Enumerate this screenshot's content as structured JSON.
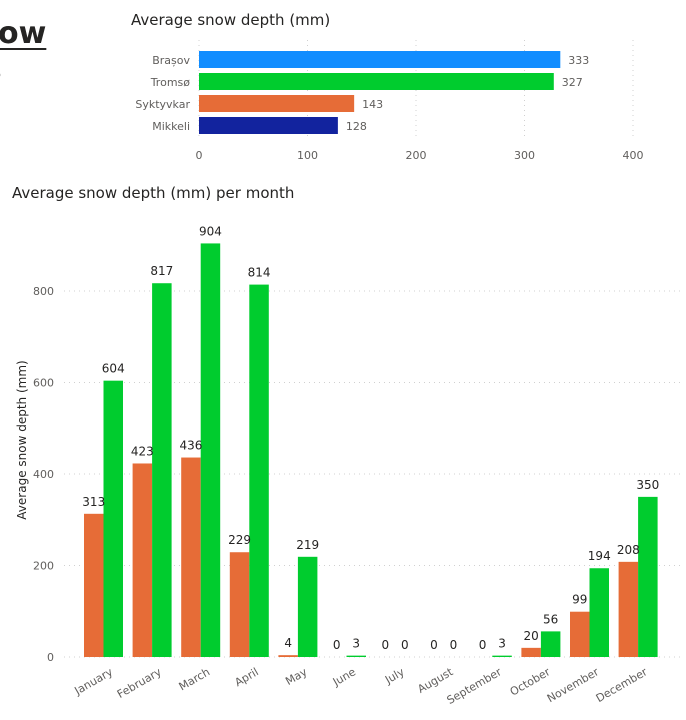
{
  "page": {
    "title_fragment": "ow",
    "title_fragment2": "s"
  },
  "chart_data": [
    {
      "type": "bar",
      "orientation": "horizontal",
      "title": "Average snow depth (mm)",
      "categories": [
        "Brașov",
        "Tromsø",
        "Syktyvkar",
        "Mikkeli"
      ],
      "values": [
        333,
        327,
        143,
        128
      ],
      "colors": [
        "#118DFF",
        "#00CC2E",
        "#E66C37",
        "#12239E"
      ],
      "xlim": [
        0,
        400
      ],
      "xticks": [
        0,
        100,
        200,
        300,
        400
      ],
      "grid": true,
      "legend": "none"
    },
    {
      "type": "bar",
      "orientation": "vertical",
      "title": "Average snow depth (mm) per month",
      "ylabel": "Average snow depth (mm)",
      "categories": [
        "January",
        "February",
        "March",
        "April",
        "May",
        "June",
        "July",
        "August",
        "September",
        "October",
        "November",
        "December"
      ],
      "series": [
        {
          "color": "#E66C37",
          "values": [
            313,
            423,
            436,
            229,
            4,
            0,
            0,
            0,
            0,
            20,
            99,
            208
          ]
        },
        {
          "color": "#00CC2E",
          "values": [
            604,
            817,
            904,
            814,
            219,
            3,
            0,
            0,
            3,
            56,
            194,
            350
          ]
        }
      ],
      "ylim": [
        0,
        950
      ],
      "yticks": [
        0,
        200,
        400,
        600,
        800
      ],
      "grid": true,
      "legend": "none"
    }
  ]
}
